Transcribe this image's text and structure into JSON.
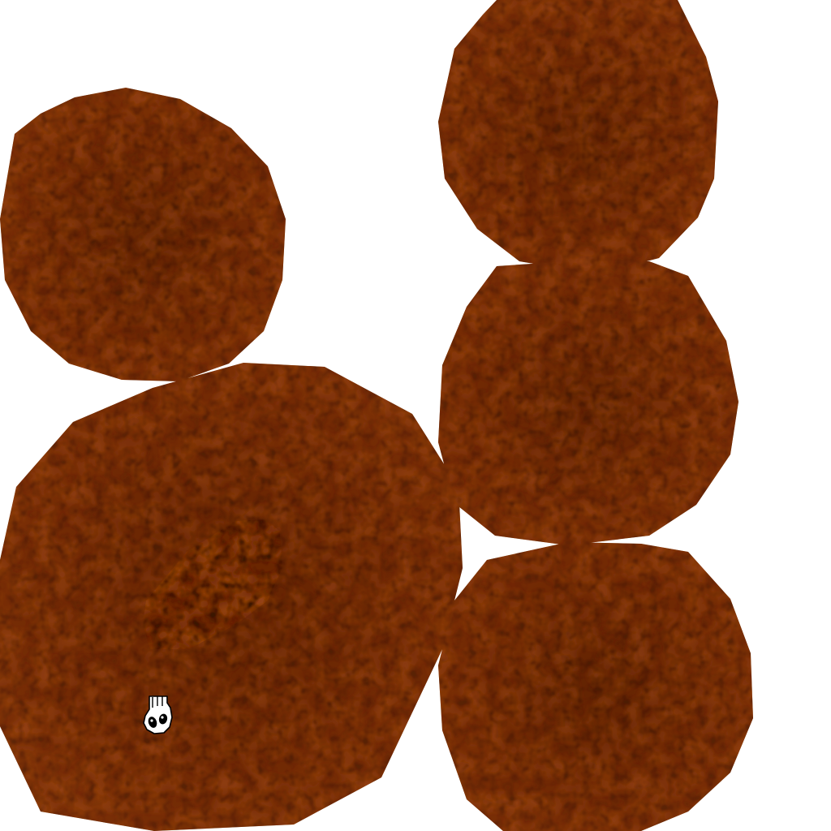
{
  "scene": {
    "background_color": "#ffffff",
    "texture": {
      "name": "cracked-clay-voronoi",
      "base_color": "#6b2706",
      "cell_color": "#8c3a0d",
      "highlight_color": "#a9501a",
      "crack_color": "#3a1402"
    },
    "shapes": [
      {
        "kind": "disc",
        "name": "disc-top-left"
      },
      {
        "kind": "disc",
        "name": "disc-top-right"
      },
      {
        "kind": "disc",
        "name": "disc-middle-right"
      },
      {
        "kind": "disc",
        "name": "disc-bottom-right"
      },
      {
        "kind": "ring",
        "name": "torus-bottom-left"
      }
    ],
    "cursor": {
      "icon": "hand-grab-icon",
      "fill_color": "#ffffff",
      "outline_color": "#000000"
    }
  }
}
